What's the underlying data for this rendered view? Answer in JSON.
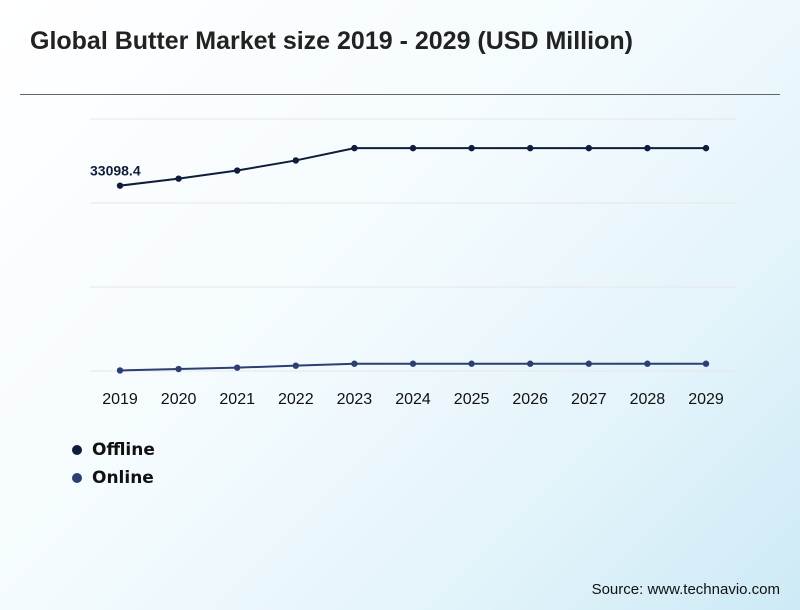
{
  "title": "Global Butter Market size 2019 - 2029 (USD Million)",
  "source": "Source: www.technavio.com",
  "colors": {
    "offline": "#0f1d3a",
    "online": "#2b3f72",
    "grid": "#e6e6e6"
  },
  "chart_data": {
    "type": "line",
    "categories": [
      "2019",
      "2020",
      "2021",
      "2022",
      "2023",
      "2024",
      "2025",
      "2026",
      "2027",
      "2028",
      "2029"
    ],
    "ylim": [
      0,
      45000
    ],
    "grid": true,
    "legend_position": "bottom-left",
    "series": [
      {
        "name": "Offline",
        "values": [
          33098.4,
          34350,
          35800,
          37600,
          39800,
          39800,
          39800,
          39800,
          39800,
          39800,
          39800
        ]
      },
      {
        "name": "Online",
        "values": [
          100,
          350,
          600,
          950,
          1300,
          1300,
          1300,
          1300,
          1300,
          1300,
          1300
        ]
      }
    ],
    "annotations": [
      {
        "series": "Offline",
        "category": "2019",
        "label": "33098.4"
      }
    ]
  }
}
